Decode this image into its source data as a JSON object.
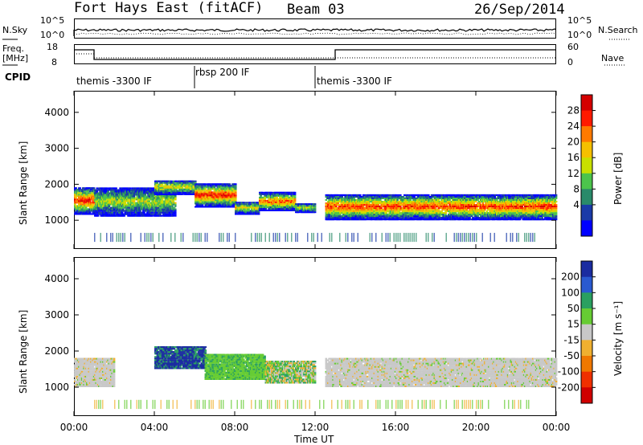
{
  "header": {
    "radar": "Fort Hays East (fitACF)",
    "beam": "Beam 03",
    "date": "26/Sep/2014"
  },
  "top_panels": {
    "nsky_label": "N.Sky",
    "nsky_ticks": [
      "10^5",
      "10^0"
    ],
    "nsearch_label": "N.Search",
    "nsearch_ticks": [
      "10^5",
      "10^0"
    ],
    "freq_label": "Freq.",
    "freq_unit": "[MHz]",
    "freq_ticks": [
      "18",
      "8"
    ],
    "nave_label": "Nave",
    "nave_ticks": [
      "60",
      "0"
    ],
    "cpid_label": "CPID",
    "cpid_segments": [
      {
        "label": "themis -3300 IF",
        "start": 0.0,
        "end": 6.0
      },
      {
        "label": "rbsp 200 IF",
        "start": 6.0,
        "end": 12.0
      },
      {
        "label": "themis -3300 IF",
        "start": 12.0,
        "end": 24.0
      }
    ]
  },
  "chart_data": [
    {
      "type": "heatmap",
      "title": "Power",
      "xlabel": "Time UT",
      "ylabel": "Slant Range [km]",
      "xlim": [
        0,
        24
      ],
      "ylim": [
        200,
        4600
      ],
      "xticks": [
        "00:00",
        "04:00",
        "08:00",
        "12:00",
        "16:00",
        "20:00",
        "00:00"
      ],
      "yticks": [
        "1000",
        "2000",
        "3000",
        "4000"
      ],
      "colorbar": {
        "label": "Power [dB]",
        "ticks": [
          "28",
          "24",
          "20",
          "16",
          "12",
          "8",
          "4"
        ],
        "colors": [
          "#d40000",
          "#ff1a00",
          "#ff7a00",
          "#f5c000",
          "#c8e000",
          "#4cc44c",
          "#2a8a6a",
          "#1a3aa8",
          "#0000ff"
        ]
      },
      "bands": [
        {
          "t0": 0.0,
          "t1": 1.0,
          "r0": 1150,
          "r1": 1900,
          "level": 0.9
        },
        {
          "t0": 1.0,
          "t1": 5.0,
          "r0": 1100,
          "r1": 1900,
          "level": 0.5
        },
        {
          "t0": 4.0,
          "t1": 6.0,
          "r0": 1700,
          "r1": 2100,
          "level": 0.6
        },
        {
          "t0": 6.0,
          "t1": 8.0,
          "r0": 1350,
          "r1": 2000,
          "level": 0.9
        },
        {
          "t0": 8.0,
          "t1": 9.2,
          "r0": 1150,
          "r1": 1500,
          "level": 0.6
        },
        {
          "t0": 9.2,
          "t1": 11.0,
          "r0": 1250,
          "r1": 1750,
          "level": 0.8
        },
        {
          "t0": 11.0,
          "t1": 12.0,
          "r0": 1200,
          "r1": 1450,
          "level": 0.5
        },
        {
          "t0": 12.5,
          "t1": 24.0,
          "r0": 1000,
          "r1": 1700,
          "level": 0.85
        }
      ]
    },
    {
      "type": "heatmap",
      "title": "Velocity",
      "xlabel": "Time UT",
      "ylabel": "Slant Range [km]",
      "xlim": [
        0,
        24
      ],
      "ylim": [
        200,
        4600
      ],
      "xticks": [
        "00:00",
        "04:00",
        "08:00",
        "12:00",
        "16:00",
        "20:00",
        "00:00"
      ],
      "yticks": [
        "1000",
        "2000",
        "3000",
        "4000"
      ],
      "colorbar": {
        "label": "Velocity [m s⁻¹]",
        "ticks": [
          "200",
          "100",
          "50",
          "15",
          "-15",
          "-50",
          "-100",
          "-200"
        ],
        "colors": [
          "#1a2ca0",
          "#2a5ad0",
          "#2aa060",
          "#66cc33",
          "#c8c8c8",
          "#f0b030",
          "#f07800",
          "#f03000",
          "#d00000"
        ]
      },
      "bands": [
        {
          "t0": 0.0,
          "t1": 2.0,
          "r0": 1000,
          "r1": 1800,
          "value": "gray"
        },
        {
          "t0": 4.0,
          "t1": 6.5,
          "r0": 1500,
          "r1": 2100,
          "value": "blue"
        },
        {
          "t0": 6.5,
          "t1": 9.5,
          "r0": 1200,
          "r1": 1900,
          "value": "green"
        },
        {
          "t0": 9.5,
          "t1": 12.0,
          "r0": 1100,
          "r1": 1700,
          "value": "mixed"
        },
        {
          "t0": 12.5,
          "t1": 24.0,
          "r0": 1000,
          "r1": 1800,
          "value": "gray"
        }
      ]
    }
  ]
}
